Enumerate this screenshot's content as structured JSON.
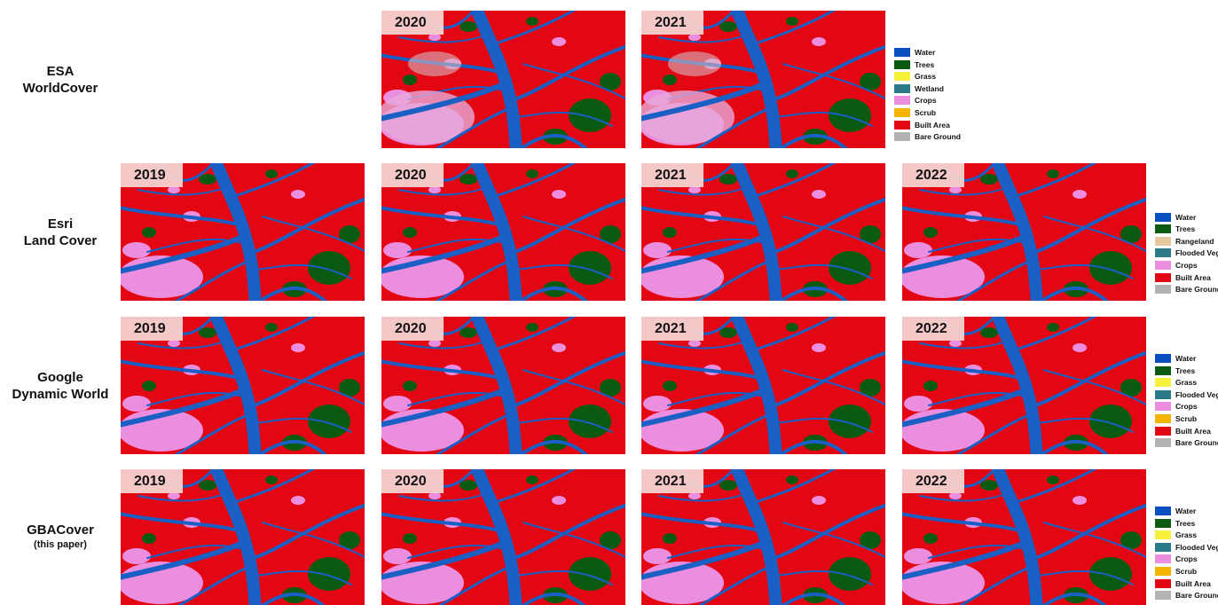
{
  "rows": [
    {
      "label_lines": [
        "ESA",
        "WorldCover"
      ],
      "panels": [
        {
          "year": "2020"
        },
        {
          "year": "2021"
        }
      ],
      "legend": [
        {
          "label": "Water",
          "color": "#0a4fc0"
        },
        {
          "label": "Trees",
          "color": "#0b5a12"
        },
        {
          "label": "Grass",
          "color": "#f5f03a"
        },
        {
          "label": "Wetland",
          "color": "#2a7a8a"
        },
        {
          "label": "Crops",
          "color": "#ec8ee0"
        },
        {
          "label": "Scrub",
          "color": "#f5b400"
        },
        {
          "label": "Built Area",
          "color": "#e30613"
        },
        {
          "label": "Bare Ground",
          "color": "#b3b3b3"
        }
      ]
    },
    {
      "label_lines": [
        "Esri",
        "Land Cover"
      ],
      "panels": [
        {
          "year": "2019"
        },
        {
          "year": "2020"
        },
        {
          "year": "2021"
        },
        {
          "year": "2022"
        }
      ],
      "legend": [
        {
          "label": "Water",
          "color": "#0a4fc0"
        },
        {
          "label": "Trees",
          "color": "#0b5a12"
        },
        {
          "label": "Rangeland",
          "color": "#e9c9a0"
        },
        {
          "label": "Flooded Veg.",
          "color": "#2a7a8a"
        },
        {
          "label": "Crops",
          "color": "#ec8ee0"
        },
        {
          "label": "Built Area",
          "color": "#e30613"
        },
        {
          "label": "Bare Ground",
          "color": "#b3b3b3"
        }
      ]
    },
    {
      "label_lines": [
        "Google",
        "Dynamic World"
      ],
      "panels": [
        {
          "year": "2019"
        },
        {
          "year": "2020"
        },
        {
          "year": "2021"
        },
        {
          "year": "2022"
        }
      ],
      "legend": [
        {
          "label": "Water",
          "color": "#0a4fc0"
        },
        {
          "label": "Trees",
          "color": "#0b5a12"
        },
        {
          "label": "Grass",
          "color": "#f5f03a"
        },
        {
          "label": "Flooded Veg.",
          "color": "#2a7a8a"
        },
        {
          "label": "Crops",
          "color": "#ec8ee0"
        },
        {
          "label": "Scrub",
          "color": "#f5b400"
        },
        {
          "label": "Built Area",
          "color": "#e30613"
        },
        {
          "label": "Bare Ground",
          "color": "#b3b3b3"
        }
      ]
    },
    {
      "label_lines": [
        "GBACover",
        "(this paper)"
      ],
      "panels": [
        {
          "year": "2019"
        },
        {
          "year": "2020"
        },
        {
          "year": "2021"
        },
        {
          "year": "2022"
        }
      ],
      "legend": [
        {
          "label": "Water",
          "color": "#0a4fc0"
        },
        {
          "label": "Trees",
          "color": "#0b5a12"
        },
        {
          "label": "Grass",
          "color": "#f5f03a"
        },
        {
          "label": "Flooded Veg.",
          "color": "#2a7a8a"
        },
        {
          "label": "Crops",
          "color": "#ec8ee0"
        },
        {
          "label": "Scrub",
          "color": "#f5b400"
        },
        {
          "label": "Built Area",
          "color": "#e30613"
        },
        {
          "label": "Bare Ground",
          "color": "#b3b3b3"
        }
      ]
    }
  ]
}
